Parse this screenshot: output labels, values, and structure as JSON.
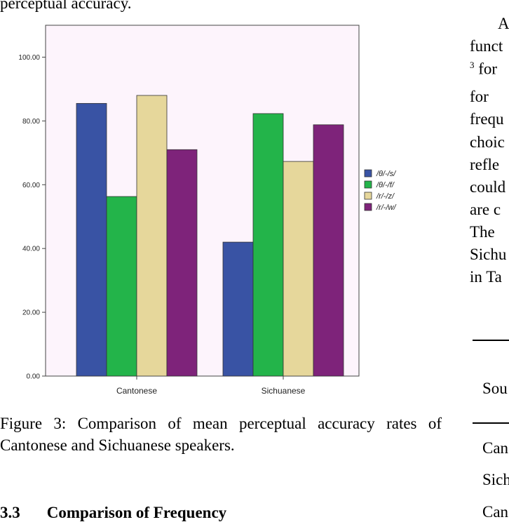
{
  "top_fragment": "perceptual accuracy.",
  "chart_data": {
    "type": "bar",
    "categories": [
      "Cantonese",
      "Sichuanese"
    ],
    "series": [
      {
        "name": "/θ/-/s/",
        "values": [
          85.5,
          42.0
        ],
        "color": "#3953A4"
      },
      {
        "name": "/θ/-/f/",
        "values": [
          56.3,
          82.3
        ],
        "color": "#23B44A"
      },
      {
        "name": "/r/-/z/",
        "values": [
          88.0,
          67.3
        ],
        "color": "#E6D79B"
      },
      {
        "name": "/r/-/w/",
        "values": [
          71.0,
          78.8
        ],
        "color": "#7E237A"
      }
    ],
    "ylim": [
      0,
      110
    ],
    "yticks": [
      "0.00",
      "20.00",
      "40.00",
      "60.00",
      "80.00",
      "100.00"
    ],
    "ytick_values": [
      0,
      20,
      40,
      60,
      80,
      100
    ],
    "plot_background": "#FDF4FC",
    "legend_placement": "right",
    "grid": false
  },
  "caption": "Figure 3:   Comparison of mean perceptual accuracy rates of Cantonese and Sichuanese speakers.",
  "section": {
    "number": "3.3",
    "title": "Comparison of Frequency"
  },
  "right_column": {
    "lines": [
      "A",
      "funct",
      "for",
      "for",
      "frequ",
      "choic",
      "refle",
      "could",
      "are  c",
      "The",
      "Sichu",
      "in Ta"
    ],
    "superscript": "3",
    "table_header": "Sou",
    "table_rows": [
      "Can",
      "Sich",
      "Can"
    ]
  }
}
